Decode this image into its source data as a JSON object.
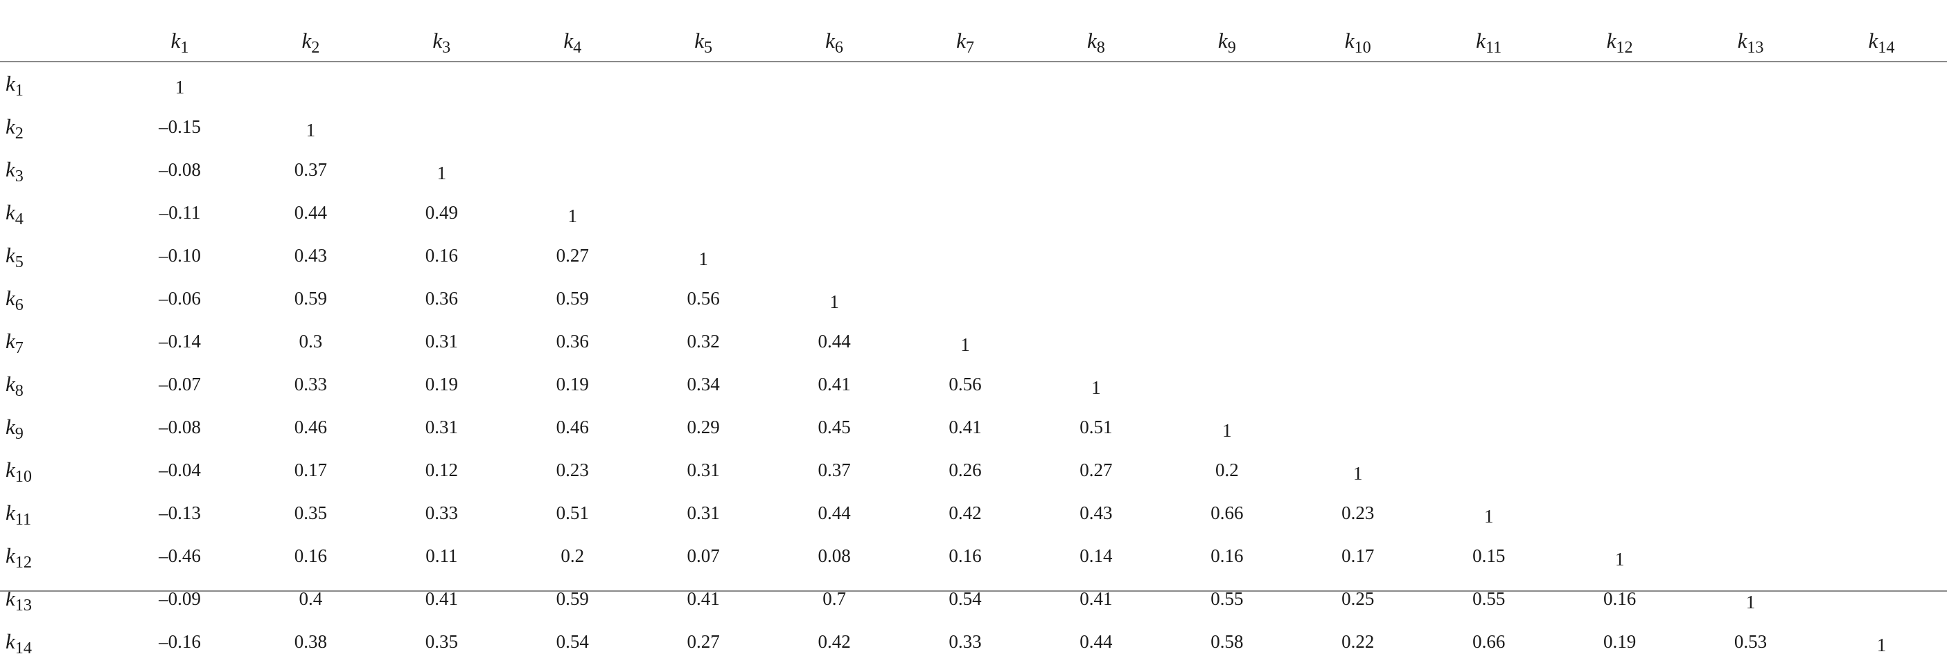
{
  "table": {
    "var_symbol": "k",
    "columns": [
      "1",
      "2",
      "3",
      "4",
      "5",
      "6",
      "7",
      "8",
      "9",
      "10",
      "11",
      "12",
      "13",
      "14"
    ],
    "rows": [
      {
        "sub": "1",
        "values": [
          "1"
        ]
      },
      {
        "sub": "2",
        "values": [
          "–0.15",
          "1"
        ]
      },
      {
        "sub": "3",
        "values": [
          "–0.08",
          "0.37",
          "1"
        ]
      },
      {
        "sub": "4",
        "values": [
          "–0.11",
          "0.44",
          "0.49",
          "1"
        ]
      },
      {
        "sub": "5",
        "values": [
          "–0.10",
          "0.43",
          "0.16",
          "0.27",
          "1"
        ]
      },
      {
        "sub": "6",
        "values": [
          "–0.06",
          "0.59",
          "0.36",
          "0.59",
          "0.56",
          "1"
        ]
      },
      {
        "sub": "7",
        "values": [
          "–0.14",
          "0.3",
          "0.31",
          "0.36",
          "0.32",
          "0.44",
          "1"
        ]
      },
      {
        "sub": "8",
        "values": [
          "–0.07",
          "0.33",
          "0.19",
          "0.19",
          "0.34",
          "0.41",
          "0.56",
          "1"
        ]
      },
      {
        "sub": "9",
        "values": [
          "–0.08",
          "0.46",
          "0.31",
          "0.46",
          "0.29",
          "0.45",
          "0.41",
          "0.51",
          "1"
        ]
      },
      {
        "sub": "10",
        "values": [
          "–0.04",
          "0.17",
          "0.12",
          "0.23",
          "0.31",
          "0.37",
          "0.26",
          "0.27",
          "0.2",
          "1"
        ]
      },
      {
        "sub": "11",
        "values": [
          "–0.13",
          "0.35",
          "0.33",
          "0.51",
          "0.31",
          "0.44",
          "0.42",
          "0.43",
          "0.66",
          "0.23",
          "1"
        ]
      },
      {
        "sub": "12",
        "values": [
          "–0.46",
          "0.16",
          "0.11",
          "0.2",
          "0.07",
          "0.08",
          "0.16",
          "0.14",
          "0.16",
          "0.17",
          "0.15",
          "1"
        ]
      },
      {
        "sub": "13",
        "values": [
          "–0.09",
          "0.4",
          "0.41",
          "0.59",
          "0.41",
          "0.7",
          "0.54",
          "0.41",
          "0.55",
          "0.25",
          "0.55",
          "0.16",
          "1"
        ]
      },
      {
        "sub": "14",
        "values": [
          "–0.16",
          "0.38",
          "0.35",
          "0.54",
          "0.27",
          "0.42",
          "0.33",
          "0.44",
          "0.58",
          "0.22",
          "0.66",
          "0.19",
          "0.53",
          "1"
        ]
      }
    ]
  }
}
